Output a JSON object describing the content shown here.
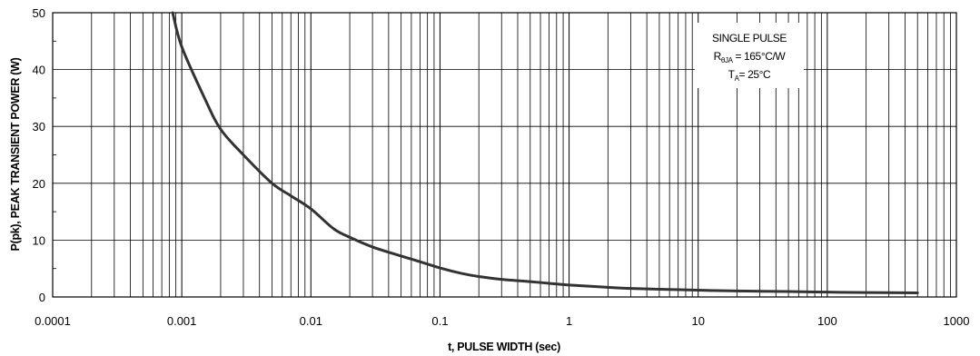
{
  "chart_data": {
    "type": "line",
    "x_scale": "log",
    "xlim": [
      0.0001,
      1000
    ],
    "ylim": [
      0,
      50
    ],
    "xlabel": "t, PULSE WIDTH (sec)",
    "ylabel": "P(pk), PEAK TRANSIENT POWER (W)",
    "x_ticks": [
      "0.0001",
      "0.001",
      "0.01",
      "0.1",
      "1",
      "10",
      "100",
      "1000"
    ],
    "y_ticks": [
      "0",
      "10",
      "20",
      "30",
      "40",
      "50"
    ],
    "grid": true,
    "annotation": {
      "line1": "SINGLE PULSE",
      "line2_main": "R",
      "line2_sub": "θJA",
      "line2_rest": " = 165°C/W",
      "line3_main": "T",
      "line3_sub": "A",
      "line3_rest": "= 25°C"
    },
    "series": [
      {
        "color": "#333333",
        "points": [
          [
            0.00085,
            50
          ],
          [
            0.001,
            44
          ],
          [
            0.0015,
            35
          ],
          [
            0.002,
            29.5
          ],
          [
            0.003,
            25
          ],
          [
            0.005,
            20
          ],
          [
            0.007,
            17.8
          ],
          [
            0.01,
            15.5
          ],
          [
            0.015,
            12
          ],
          [
            0.02,
            10.5
          ],
          [
            0.03,
            8.8
          ],
          [
            0.05,
            7.2
          ],
          [
            0.07,
            6.2
          ],
          [
            0.1,
            5.1
          ],
          [
            0.15,
            4.1
          ],
          [
            0.2,
            3.6
          ],
          [
            0.3,
            3.1
          ],
          [
            0.5,
            2.7
          ],
          [
            0.7,
            2.4
          ],
          [
            1,
            2.1
          ],
          [
            2,
            1.7
          ],
          [
            3,
            1.5
          ],
          [
            5,
            1.35
          ],
          [
            10,
            1.2
          ],
          [
            20,
            1.05
          ],
          [
            50,
            0.95
          ],
          [
            100,
            0.85
          ],
          [
            200,
            0.78
          ],
          [
            500,
            0.72
          ]
        ]
      }
    ]
  }
}
